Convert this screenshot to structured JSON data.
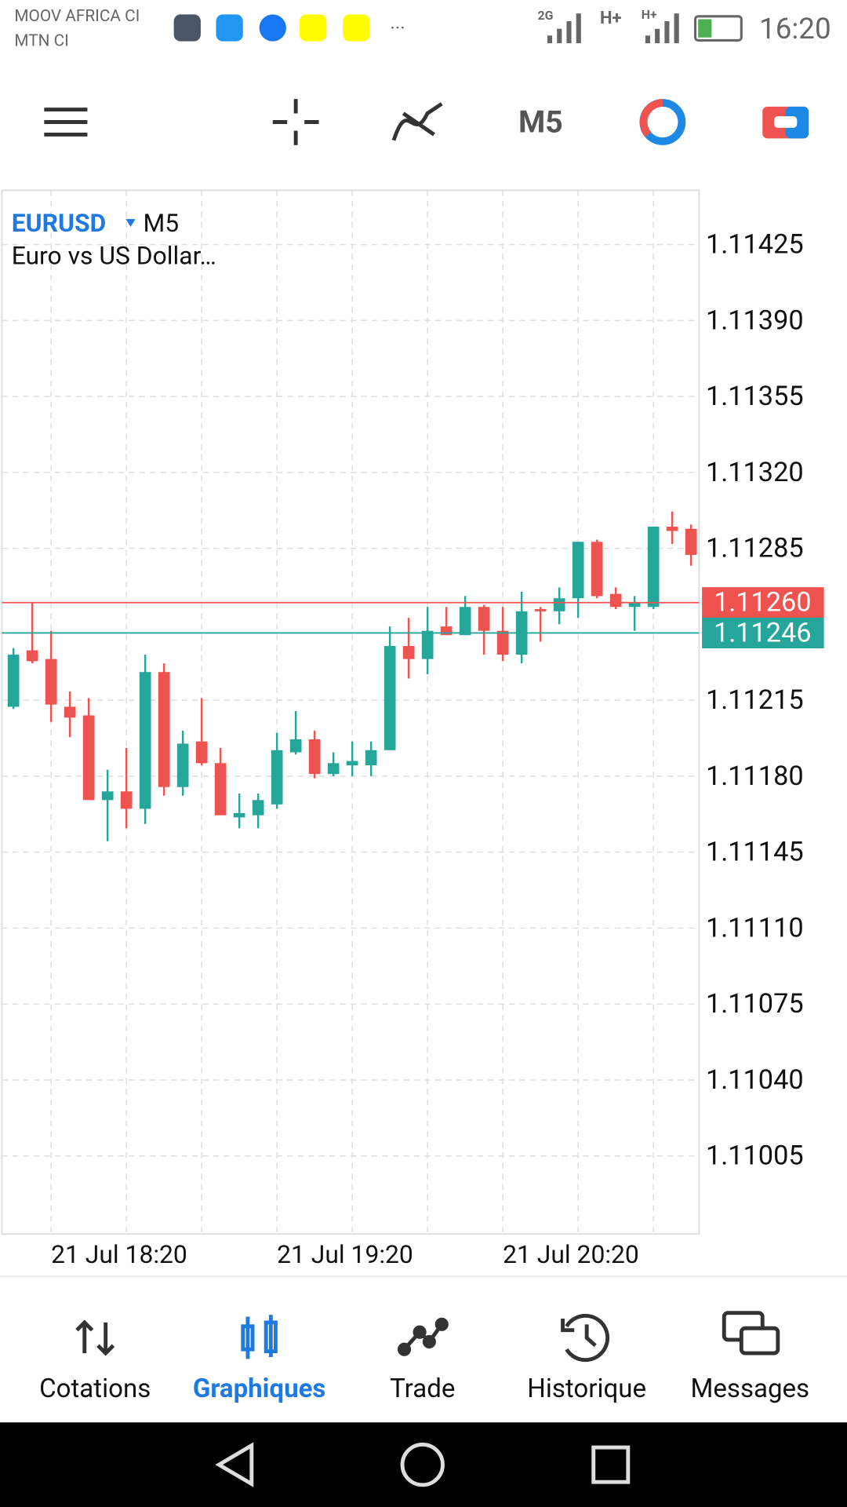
{
  "status_bar": {
    "carriers": [
      "MOOV AFRICA CI",
      "MTN CI"
    ],
    "network": [
      "2G",
      "H+",
      "H+"
    ],
    "time": "16:20"
  },
  "toolbar": {
    "timeframe": "M5"
  },
  "chart_data": {
    "type": "candlestick",
    "symbol": "EURUSD",
    "timeframe": "M5",
    "description": "Euro vs US Dollar…",
    "categories": [
      null,
      null,
      "21 Jul 18:20",
      null,
      null,
      null,
      null,
      null,
      null,
      null,
      null,
      null,
      null,
      null,
      "21 Jul 19:20",
      null,
      null,
      null,
      null,
      null,
      null,
      null,
      null,
      null,
      null,
      null,
      "21 Jul 20:20",
      null,
      null,
      null,
      null,
      null,
      null,
      null,
      null,
      null,
      null
    ],
    "open": [
      1.11212,
      1.11238,
      1.11234,
      1.11212,
      1.11208,
      1.11169,
      1.11173,
      1.11165,
      1.11228,
      1.11175,
      1.11196,
      1.11186,
      1.11161,
      1.11162,
      1.11167,
      1.11191,
      1.11197,
      1.11181,
      1.11185,
      1.11185,
      1.11192,
      1.1124,
      1.11234,
      1.11249,
      1.11245,
      1.11258,
      1.11247,
      1.11236,
      1.11257,
      1.11256,
      1.11262,
      1.11288,
      1.11264,
      1.11258,
      1.11258,
      1.11295,
      1.11294
    ],
    "high": [
      1.11239,
      1.1126,
      1.11247,
      1.11219,
      1.11216,
      1.11183,
      1.11193,
      1.11236,
      1.11232,
      1.11201,
      1.11216,
      1.11193,
      1.11172,
      1.11172,
      1.112,
      1.1121,
      1.11201,
      1.11191,
      1.11196,
      1.11196,
      1.11249,
      1.11253,
      1.11258,
      1.11258,
      1.11263,
      1.11259,
      1.11258,
      1.11265,
      1.11258,
      1.11267,
      1.11288,
      1.11289,
      1.11267,
      1.11263,
      1.11295,
      1.11302,
      1.11296
    ],
    "low": [
      1.11211,
      1.11232,
      1.11205,
      1.11198,
      1.11169,
      1.1115,
      1.11156,
      1.11158,
      1.11171,
      1.11171,
      1.11185,
      1.11162,
      1.11156,
      1.11156,
      1.11165,
      1.1119,
      1.11179,
      1.1118,
      1.1118,
      1.1118,
      1.11192,
      1.11225,
      1.11227,
      1.11245,
      1.11245,
      1.11236,
      1.11233,
      1.11232,
      1.11242,
      1.1125,
      1.11253,
      1.11262,
      1.11257,
      1.11247,
      1.11257,
      1.11287,
      1.11277
    ],
    "close": [
      1.11236,
      1.11233,
      1.11213,
      1.11207,
      1.11169,
      1.11173,
      1.11165,
      1.11228,
      1.11175,
      1.11195,
      1.11186,
      1.11162,
      1.11163,
      1.11169,
      1.11192,
      1.11197,
      1.11181,
      1.11186,
      1.11187,
      1.11192,
      1.1124,
      1.11234,
      1.11247,
      1.11245,
      1.11258,
      1.11247,
      1.11236,
      1.11256,
      1.11256,
      1.11262,
      1.11288,
      1.11263,
      1.11258,
      1.1126,
      1.11295,
      1.11293,
      1.11282
    ],
    "up_color": "#26a69a",
    "down_color": "#ef5350",
    "ylim": [
      1.10969,
      1.1145
    ],
    "yticks": [
      1.11425,
      {
        "value": 1.1139,
        "label": "1.11390"
      },
      1.11355,
      {
        "value": 1.1132,
        "label": "1.11320"
      },
      1.11285,
      1.11215,
      {
        "value": 1.1118,
        "label": "1.11180"
      },
      1.11145,
      {
        "value": 1.1111,
        "label": "1.11110"
      },
      1.11075,
      {
        "value": 1.1104,
        "label": "1.11040"
      },
      1.11005
    ],
    "price_lines": [
      {
        "value": 1.1126,
        "label": "1.11260",
        "color": "#ef5350"
      },
      {
        "value": 1.11246,
        "label": "1.11246",
        "color": "#26a69a"
      }
    ],
    "grid": true
  },
  "nav": {
    "tabs": [
      "Cotations",
      "Graphiques",
      "Trade",
      "Historique",
      "Messages"
    ],
    "active": 1
  }
}
